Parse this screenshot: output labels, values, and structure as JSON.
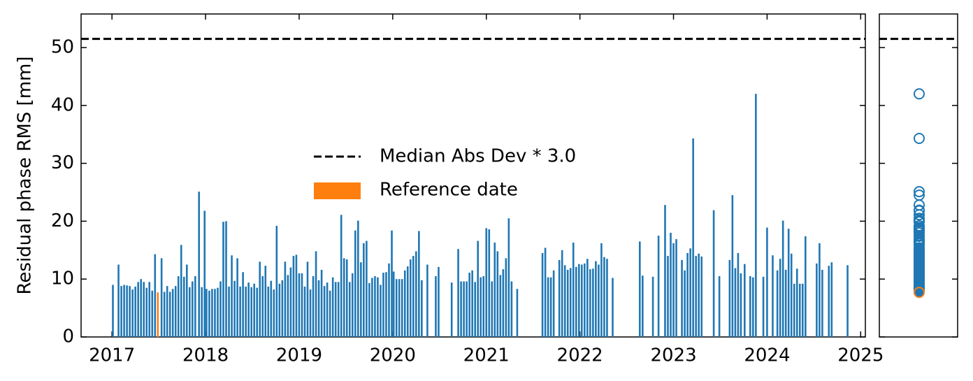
{
  "chart_data": {
    "type": "bar",
    "ylabel": "Residual phase RMS [mm]",
    "xlim": [
      2016.67,
      2025.05
    ],
    "xticks": [
      2017,
      2018,
      2019,
      2020,
      2021,
      2022,
      2023,
      2024,
      2025
    ],
    "ylim": [
      0,
      55.8
    ],
    "yticks": [
      0,
      10,
      20,
      30,
      40,
      50
    ],
    "color": "#1f77b4",
    "x": [
      2017.01,
      2017.07,
      2017.1,
      2017.13,
      2017.16,
      2017.19,
      2017.22,
      2017.25,
      2017.28,
      2017.31,
      2017.34,
      2017.37,
      2017.4,
      2017.43,
      2017.46,
      2017.53,
      2017.56,
      2017.59,
      2017.62,
      2017.65,
      2017.68,
      2017.71,
      2017.74,
      2017.77,
      2017.8,
      2017.83,
      2017.86,
      2017.89,
      2017.93,
      2017.96,
      2017.99,
      2018.01,
      2018.04,
      2018.07,
      2018.1,
      2018.13,
      2018.16,
      2018.19,
      2018.22,
      2018.25,
      2018.28,
      2018.31,
      2018.34,
      2018.37,
      2018.4,
      2018.43,
      2018.46,
      2018.49,
      2018.52,
      2018.55,
      2018.58,
      2018.61,
      2018.64,
      2018.67,
      2018.7,
      2018.73,
      2018.76,
      2018.79,
      2018.82,
      2018.85,
      2018.88,
      2018.91,
      2018.94,
      2018.97,
      2019.0,
      2019.03,
      2019.06,
      2019.09,
      2019.12,
      2019.15,
      2019.18,
      2019.21,
      2019.24,
      2019.27,
      2019.3,
      2019.33,
      2019.36,
      2019.39,
      2019.42,
      2019.45,
      2019.48,
      2019.51,
      2019.54,
      2019.57,
      2019.6,
      2019.63,
      2019.66,
      2019.69,
      2019.72,
      2019.75,
      2019.78,
      2019.81,
      2019.84,
      2019.87,
      2019.9,
      2019.93,
      2019.96,
      2019.99,
      2020.01,
      2020.04,
      2020.07,
      2020.1,
      2020.13,
      2020.16,
      2020.19,
      2020.22,
      2020.25,
      2020.28,
      2020.31,
      2020.37,
      2020.46,
      2020.49,
      2020.63,
      2020.7,
      2020.73,
      2020.76,
      2020.79,
      2020.82,
      2020.85,
      2020.88,
      2020.91,
      2020.94,
      2020.97,
      2021.0,
      2021.03,
      2021.06,
      2021.09,
      2021.12,
      2021.15,
      2021.18,
      2021.21,
      2021.24,
      2021.27,
      2021.33,
      2021.6,
      2021.63,
      2021.66,
      2021.69,
      2021.72,
      2021.78,
      2021.81,
      2021.84,
      2021.87,
      2021.9,
      2021.93,
      2021.96,
      2021.99,
      2022.02,
      2022.05,
      2022.08,
      2022.11,
      2022.14,
      2022.17,
      2022.2,
      2022.23,
      2022.26,
      2022.29,
      2022.35,
      2022.64,
      2022.67,
      2022.78,
      2022.84,
      2022.91,
      2022.94,
      2022.97,
      2023.0,
      2023.03,
      2023.09,
      2023.12,
      2023.15,
      2023.18,
      2023.21,
      2023.24,
      2023.27,
      2023.3,
      2023.43,
      2023.49,
      2023.6,
      2023.63,
      2023.66,
      2023.69,
      2023.72,
      2023.76,
      2023.82,
      2023.85,
      2023.88,
      2023.96,
      2024.0,
      2024.06,
      2024.11,
      2024.14,
      2024.17,
      2024.2,
      2024.23,
      2024.26,
      2024.29,
      2024.32,
      2024.35,
      2024.38,
      2024.41,
      2024.53,
      2024.56,
      2024.59,
      2024.66,
      2024.69,
      2024.86
    ],
    "values": [
      9.0,
      12.5,
      8.8,
      9.0,
      8.9,
      8.8,
      8.2,
      8.7,
      9.5,
      10.0,
      9.5,
      8.5,
      9.5,
      8.0,
      14.3,
      13.6,
      7.8,
      8.8,
      7.8,
      8.3,
      8.8,
      10.5,
      15.9,
      10.4,
      12.5,
      8.6,
      9.6,
      10.5,
      25.1,
      8.6,
      21.8,
      8.3,
      8.0,
      8.3,
      8.3,
      8.5,
      9.6,
      19.9,
      20.0,
      8.7,
      14.1,
      9.7,
      13.6,
      8.7,
      11.2,
      8.7,
      9.4,
      8.6,
      9.2,
      8.5,
      13.0,
      10.5,
      12.3,
      8.7,
      9.7,
      8.2,
      19.2,
      9.2,
      9.8,
      13.0,
      10.7,
      12.0,
      14.0,
      14.2,
      11.0,
      11.0,
      8.7,
      13.0,
      8.2,
      10.5,
      14.8,
      9.8,
      11.6,
      8.8,
      9.4,
      8.0,
      10.3,
      9.5,
      9.5,
      21.1,
      13.6,
      13.4,
      9.5,
      11.0,
      18.4,
      20.1,
      12.9,
      16.2,
      16.6,
      9.3,
      10.2,
      10.5,
      10.3,
      9.0,
      11.1,
      11.2,
      12.7,
      18.4,
      11.3,
      10.0,
      10.0,
      10.0,
      11.5,
      12.2,
      13.4,
      14.0,
      14.8,
      18.3,
      9.8,
      12.5,
      10.5,
      12.1,
      9.4,
      15.2,
      9.6,
      9.6,
      9.6,
      11.1,
      11.5,
      9.5,
      16.6,
      10.3,
      10.5,
      18.8,
      18.6,
      9.6,
      16.3,
      14.8,
      10.7,
      11.7,
      13.6,
      20.5,
      9.6,
      8.3,
      14.5,
      15.4,
      10.3,
      10.3,
      11.5,
      13.3,
      15.0,
      12.4,
      11.6,
      11.9,
      16.3,
      12.1,
      12.6,
      12.5,
      12.7,
      13.5,
      11.7,
      11.8,
      13.1,
      12.5,
      16.2,
      13.8,
      13.5,
      10.2,
      16.5,
      10.6,
      10.4,
      17.5,
      22.8,
      14.0,
      18.0,
      16.2,
      16.9,
      13.3,
      11.5,
      14.5,
      15.3,
      34.3,
      14.0,
      14.4,
      13.9,
      21.9,
      10.5,
      13.3,
      24.5,
      11.9,
      14.5,
      11.0,
      12.6,
      10.5,
      10.3,
      42.0,
      10.4,
      18.9,
      14.1,
      11.5,
      13.5,
      20.1,
      11.6,
      18.7,
      14.4,
      9.2,
      11.8,
      9.2,
      9.2,
      17.4,
      12.7,
      16.2,
      11.6,
      12.3,
      12.9,
      12.4
    ],
    "reference": {
      "name": "Reference date",
      "x": 2017.49,
      "value": 7.7,
      "color": "#ff7f0e"
    },
    "threshold": {
      "name": "Median Abs Dev * 3.0",
      "value": 51.5,
      "color": "#000000"
    }
  }
}
